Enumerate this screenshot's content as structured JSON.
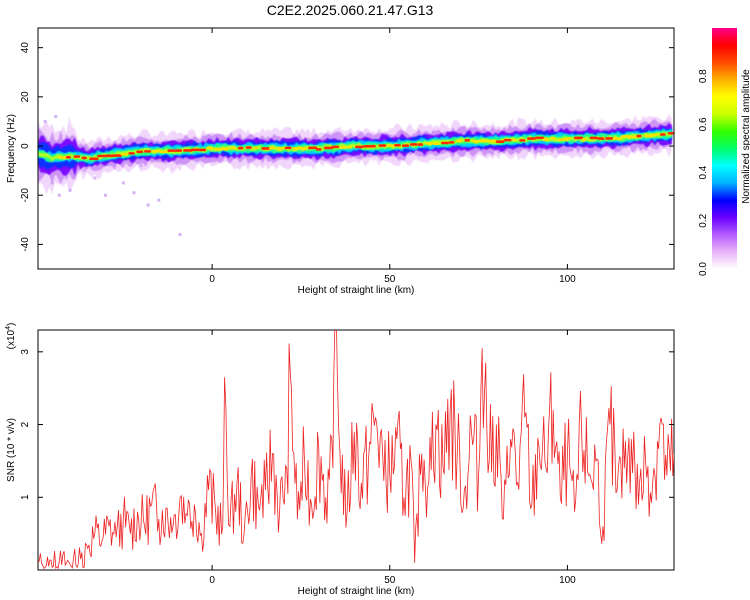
{
  "title": "C2E2.2025.060.21.47.G13",
  "chart_data": [
    {
      "type": "heatmap",
      "xlabel": "Height of straight line (km)",
      "ylabel": "Frequency (Hz)",
      "xlim": [
        -49,
        130
      ],
      "ylim": [
        -50,
        48
      ],
      "xticks": [
        0,
        50,
        100
      ],
      "yticks": [
        -40,
        -20,
        0,
        20,
        40
      ],
      "colorbar": {
        "label": "Normalized spectral amplitude",
        "range": [
          0,
          1
        ],
        "ticks": [
          "0.0",
          "0.2",
          "0.4",
          "0.6",
          "0.8"
        ],
        "colors": [
          "#ffffff",
          "#e9b3f8",
          "#b35cff",
          "#6a00ff",
          "#0000ff",
          "#00b4ff",
          "#00ffff",
          "#00ff66",
          "#33ff00",
          "#ccff00",
          "#ffff00",
          "#ffb000",
          "#ff4b00",
          "#ff0000",
          "#ff0088"
        ]
      },
      "ridge": {
        "x": [
          -49,
          -45,
          -40,
          -35,
          -30,
          -25,
          -20,
          -10,
          0,
          10,
          20,
          30,
          40,
          50,
          60,
          70,
          80,
          90,
          100,
          110,
          120,
          130
        ],
        "freq": [
          -3,
          -5,
          -4,
          -5,
          -4,
          -3,
          -2,
          -2,
          -1,
          -1,
          -1,
          -1,
          0,
          0,
          1,
          2,
          2,
          3,
          3,
          3,
          4,
          5
        ]
      }
    },
    {
      "type": "line",
      "xlabel": "Height of straight line (km)",
      "ylabel": "SNR (10 * v/v)",
      "multiplier": "(x10",
      "multiplier_exp": "4",
      "multiplier_close": ")",
      "xlim": [
        -49,
        130
      ],
      "ylim": [
        0,
        3.3
      ],
      "xticks": [
        0,
        50,
        100
      ],
      "yticks": [
        1,
        2,
        3
      ],
      "series": [
        {
          "color": "#ee2222",
          "x": [
            -49,
            -46,
            -43,
            -40,
            -37,
            -35,
            -33,
            -31,
            -29,
            -27,
            -25,
            -23,
            -21,
            -19,
            -17,
            -15,
            -13,
            -11,
            -9,
            -7,
            -5,
            -3,
            -1,
            1,
            3,
            3.5,
            5,
            7,
            9,
            11,
            13,
            15,
            17,
            19,
            21,
            22,
            24,
            26,
            28,
            30,
            32,
            34,
            34.5,
            36,
            38,
            40,
            42,
            44,
            46,
            48,
            50,
            52,
            54,
            56,
            57,
            59,
            61,
            63,
            65,
            67,
            69,
            71,
            73,
            75,
            76,
            78,
            80,
            82,
            84,
            86,
            88,
            90,
            92,
            94,
            96,
            98,
            100,
            102,
            104,
            106,
            108,
            110,
            112,
            114,
            116,
            118,
            120,
            122,
            124,
            126,
            128,
            130
          ],
          "y": [
            0.1,
            0.05,
            0.12,
            0.08,
            0.15,
            0.3,
            0.5,
            0.4,
            0.6,
            0.45,
            0.7,
            0.5,
            0.8,
            0.6,
            0.9,
            0.7,
            0.85,
            0.6,
            1.0,
            0.75,
            0.9,
            0.5,
            1.1,
            0.8,
            0.6,
            2.65,
            0.6,
            1.2,
            0.5,
            1.3,
            0.9,
            1.1,
            1.6,
            0.8,
            1.4,
            2.7,
            0.7,
            1.5,
            0.9,
            1.7,
            1.0,
            1.4,
            3.25,
            1.6,
            0.8,
            1.9,
            1.2,
            1.5,
            2.1,
            1.6,
            1.3,
            1.8,
            1.0,
            1.5,
            0.1,
            1.6,
            1.2,
            2.0,
            1.4,
            2.2,
            1.6,
            1.1,
            1.9,
            1.3,
            3.05,
            1.5,
            2.0,
            0.7,
            1.8,
            1.2,
            2.1,
            0.9,
            1.7,
            1.4,
            2.2,
            1.0,
            1.6,
            0.8,
            1.9,
            1.3,
            1.5,
            0.6,
            2.0,
            1.1,
            1.4,
            1.8,
            0.9,
            1.5,
            1.2,
            2.0,
            1.3,
            1.6
          ]
        }
      ]
    }
  ]
}
